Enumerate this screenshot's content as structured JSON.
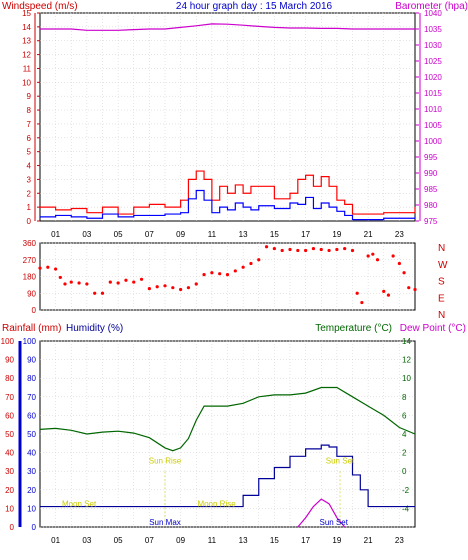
{
  "chart_data": [
    {
      "type": "line",
      "title": "24 hour graph day : 15 March 2016",
      "ylabel_left": "Windspeed (m/s)",
      "ylabel_right": "Barometer (hpa)",
      "y_ticks_left": [
        "0",
        "1",
        "2",
        "3",
        "4",
        "5",
        "6",
        "7",
        "8",
        "9",
        "10",
        "11",
        "12",
        "13",
        "14",
        "15"
      ],
      "y_ticks_right": [
        "975",
        "980",
        "985",
        "990",
        "995",
        "1000",
        "1005",
        "1010",
        "1015",
        "1020",
        "1025",
        "1030",
        "1035",
        "1040"
      ],
      "x_ticks": [
        "01",
        "03",
        "05",
        "07",
        "09",
        "11",
        "13",
        "15",
        "17",
        "19",
        "21",
        "23"
      ],
      "ylim_left": [
        0,
        15
      ],
      "ylim_right": [
        975,
        1040
      ],
      "xlim": [
        0,
        24
      ],
      "series": [
        {
          "name": "Barometer",
          "color": "#cc00cc",
          "axis": "right",
          "x": [
            0,
            1,
            2,
            3,
            4,
            5,
            6,
            7,
            8,
            9,
            10,
            11,
            12,
            13,
            14,
            15,
            16,
            17,
            18,
            19,
            20,
            21,
            22,
            23,
            24
          ],
          "y": [
            1035,
            1035,
            1035,
            1034.6,
            1034.6,
            1034.6,
            1034.8,
            1035,
            1035,
            1035.5,
            1036,
            1036.6,
            1036.5,
            1036.2,
            1035.8,
            1035.5,
            1035.3,
            1035.3,
            1035.2,
            1035.2,
            1035,
            1035,
            1035,
            1035,
            1035
          ]
        },
        {
          "name": "Gust",
          "color": "#ff0000",
          "axis": "left",
          "x": [
            0,
            1,
            2,
            3,
            4,
            5,
            6,
            7,
            8,
            9,
            9.5,
            10,
            10.5,
            11,
            11.5,
            12,
            12.5,
            13,
            13.5,
            14,
            15,
            16,
            16.5,
            17,
            17.5,
            18,
            18.5,
            19,
            19.5,
            20,
            21,
            22,
            23,
            24
          ],
          "y": [
            1,
            0.8,
            0.9,
            0.6,
            1,
            0.5,
            1,
            1.2,
            1,
            1.5,
            3,
            3.6,
            3,
            1.5,
            2.5,
            2,
            2.6,
            2,
            2.5,
            2.5,
            1.6,
            2,
            3,
            3.3,
            2.5,
            3.2,
            2.5,
            1.5,
            1.2,
            0.5,
            0.5,
            0.6,
            0.6,
            1
          ]
        },
        {
          "name": "Windspeed",
          "color": "#0000ff",
          "axis": "left",
          "x": [
            0,
            1,
            2,
            3,
            4,
            5,
            6,
            7,
            8,
            9,
            9.5,
            10,
            10.5,
            11,
            11.5,
            12,
            12.5,
            13,
            13.5,
            14,
            15,
            16,
            16.5,
            17,
            17.5,
            18,
            18.5,
            19,
            19.5,
            20,
            21,
            22,
            23,
            24
          ],
          "y": [
            0.3,
            0.4,
            0.3,
            0.2,
            0.5,
            0.3,
            0.4,
            0.4,
            0.5,
            0.6,
            1.6,
            2.2,
            1.5,
            0.6,
            1,
            0.8,
            1.3,
            1,
            0.8,
            1.1,
            0.9,
            1.3,
            1.2,
            1.7,
            0.9,
            1.3,
            1,
            0.7,
            0.4,
            0.1,
            0.1,
            0.2,
            0.2,
            0.3
          ]
        }
      ]
    },
    {
      "type": "scatter",
      "y_ticks": [
        "360",
        "270",
        "180",
        "90",
        "0"
      ],
      "compass": [
        "N",
        "W",
        "S",
        "E",
        "N"
      ],
      "ylim": [
        0,
        360
      ],
      "xlim": [
        0,
        24
      ],
      "series": [
        {
          "name": "Wind direction",
          "color": "#ff0000",
          "x": [
            0,
            0.5,
            1,
            1.3,
            1.6,
            2,
            2.5,
            3,
            3.5,
            4,
            4.5,
            5,
            5.5,
            6,
            6.5,
            7,
            7.5,
            8,
            8.5,
            9,
            9.5,
            10,
            10.5,
            11,
            11.5,
            12,
            12.5,
            13,
            13.5,
            14,
            14.5,
            15,
            15.5,
            16,
            16.5,
            17,
            17.5,
            18,
            18.5,
            19,
            19.5,
            20,
            20.3,
            20.6,
            21,
            21.3,
            21.6,
            22,
            22.3,
            22.6,
            23,
            23.3,
            23.6,
            24
          ],
          "y": [
            225,
            230,
            220,
            175,
            140,
            150,
            145,
            140,
            90,
            90,
            150,
            145,
            160,
            150,
            165,
            115,
            125,
            130,
            120,
            110,
            120,
            140,
            190,
            200,
            195,
            190,
            210,
            230,
            250,
            270,
            340,
            330,
            320,
            325,
            320,
            320,
            330,
            325,
            320,
            325,
            330,
            320,
            90,
            40,
            290,
            300,
            270,
            100,
            80,
            290,
            250,
            200,
            120,
            110
          ]
        }
      ]
    },
    {
      "type": "line",
      "ylabel_left_1": "Rainfall (mm)",
      "ylabel_left_2": "Humidity (%)",
      "ylabel_right_1": "Temperature (°C)",
      "ylabel_right_2": "Dew Point (°C)",
      "y_ticks_left": [
        "0",
        "10",
        "20",
        "30",
        "40",
        "50",
        "60",
        "70",
        "80",
        "90",
        "100"
      ],
      "y_ticks_right": [
        "-4",
        "-2",
        "0",
        "2",
        "4",
        "6",
        "8",
        "10",
        "12",
        "14"
      ],
      "x_ticks": [
        "01",
        "03",
        "05",
        "07",
        "09",
        "11",
        "13",
        "15",
        "17",
        "19",
        "21",
        "23"
      ],
      "ylim_left": [
        0,
        100
      ],
      "ylim_right": [
        -6,
        14
      ],
      "xlim": [
        0,
        24
      ],
      "annotations": [
        {
          "text": "Moon Set",
          "x": 2.5,
          "y": 10,
          "color": "#cccc00"
        },
        {
          "text": "Sun Rise",
          "x": 8,
          "y": 33,
          "color": "#cccc00"
        },
        {
          "text": "Moon Rise",
          "x": 11.3,
          "y": 10,
          "color": "#cccc00"
        },
        {
          "text": "Sun Set",
          "x": 19.2,
          "y": 33,
          "color": "#cccc00"
        },
        {
          "text": "Sun Max",
          "x": 8,
          "y": 0,
          "color": "#0000cc"
        },
        {
          "text": "Sun Set",
          "x": 18.8,
          "y": 0,
          "color": "#0000cc"
        }
      ],
      "series": [
        {
          "name": "Temperature",
          "color": "#006600",
          "axis": "right",
          "x": [
            0,
            1,
            2,
            3,
            4,
            5,
            6,
            7,
            8,
            8.5,
            9,
            9.5,
            10,
            10.5,
            11,
            12,
            13,
            14,
            15,
            16,
            17,
            18,
            19,
            20,
            21,
            22,
            23,
            24
          ],
          "y": [
            4.5,
            4.6,
            4.4,
            4,
            4.2,
            4.3,
            4.1,
            3.6,
            2.5,
            2.2,
            2.5,
            3.5,
            5.5,
            7,
            7,
            7,
            7.3,
            8,
            8.2,
            8.2,
            8.4,
            9,
            9,
            8,
            7,
            6,
            4.7,
            4
          ]
        },
        {
          "name": "Humidity",
          "color": "#000099",
          "axis": "left",
          "x": [
            0,
            1,
            2,
            3,
            4,
            5,
            6,
            7,
            8,
            9,
            10,
            11,
            12,
            12.5,
            13,
            14,
            15,
            16,
            17,
            18,
            18.5,
            19,
            20,
            20.5,
            21,
            22,
            23,
            24
          ],
          "y": [
            11,
            11,
            11,
            11,
            11,
            11,
            11,
            11,
            11,
            11,
            11,
            11,
            11,
            11,
            17,
            26,
            32,
            38,
            42,
            44,
            43,
            38,
            28,
            20,
            11,
            11,
            11,
            11
          ]
        },
        {
          "name": "Dew Point",
          "color": "#cc00cc",
          "axis": "right",
          "x": [
            16.5,
            17,
            17.5,
            18,
            18.5,
            19,
            19.5
          ],
          "y": [
            -6,
            -5,
            -3.8,
            -3,
            -3.5,
            -5,
            -6
          ]
        }
      ]
    }
  ]
}
